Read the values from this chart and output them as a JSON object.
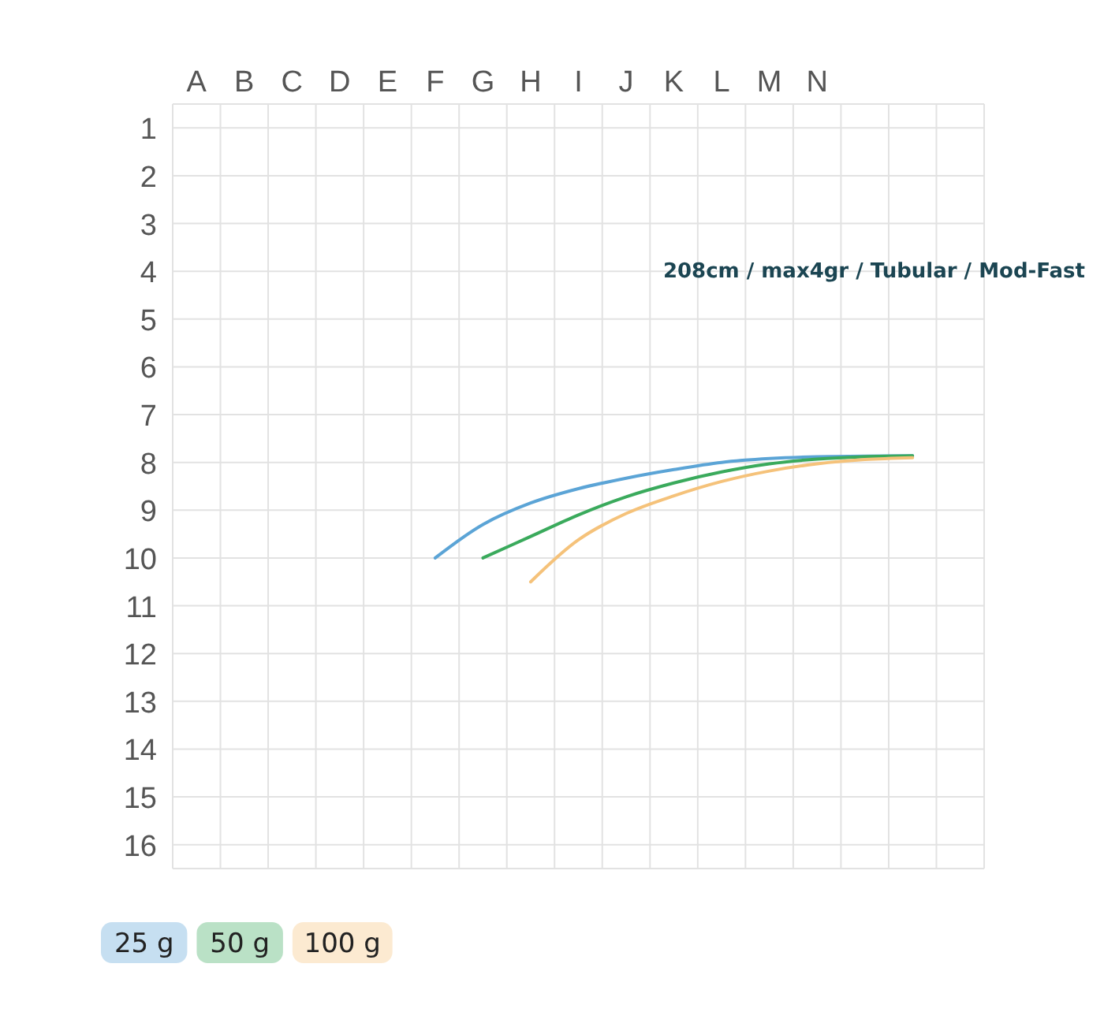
{
  "chart_data": {
    "type": "line",
    "title": "208cm / max4gr / Tubular / Mod-Fast",
    "categories": [
      "A",
      "B",
      "C",
      "D",
      "E",
      "F",
      "G",
      "H",
      "I",
      "J",
      "K",
      "L",
      "M",
      "N",
      null,
      null,
      null
    ],
    "ylim": [
      16.5,
      0.5
    ],
    "yticks": [
      1,
      2,
      3,
      4,
      5,
      6,
      7,
      8,
      9,
      10,
      11,
      12,
      13,
      14,
      15,
      16
    ],
    "grid": true,
    "legend": "bottom left",
    "marker": "none",
    "line_style": "solid",
    "series": [
      {
        "name": "25 g",
        "color": "#5ba4d6",
        "values": [
          null,
          null,
          null,
          null,
          null,
          10.0,
          9.3,
          8.85,
          8.55,
          8.33,
          8.15,
          8.0,
          7.92,
          7.88,
          7.87,
          7.86,
          null
        ]
      },
      {
        "name": "50 g",
        "color": "#3aaa5c",
        "values": [
          null,
          null,
          null,
          null,
          null,
          null,
          10.0,
          9.55,
          9.1,
          8.72,
          8.43,
          8.2,
          8.03,
          7.93,
          7.88,
          7.86,
          null
        ]
      },
      {
        "name": "100 g",
        "color": "#f5c27a",
        "values": [
          null,
          null,
          null,
          null,
          null,
          null,
          null,
          10.5,
          9.62,
          9.07,
          8.7,
          8.4,
          8.18,
          8.03,
          7.94,
          7.9,
          null
        ]
      }
    ]
  }
}
